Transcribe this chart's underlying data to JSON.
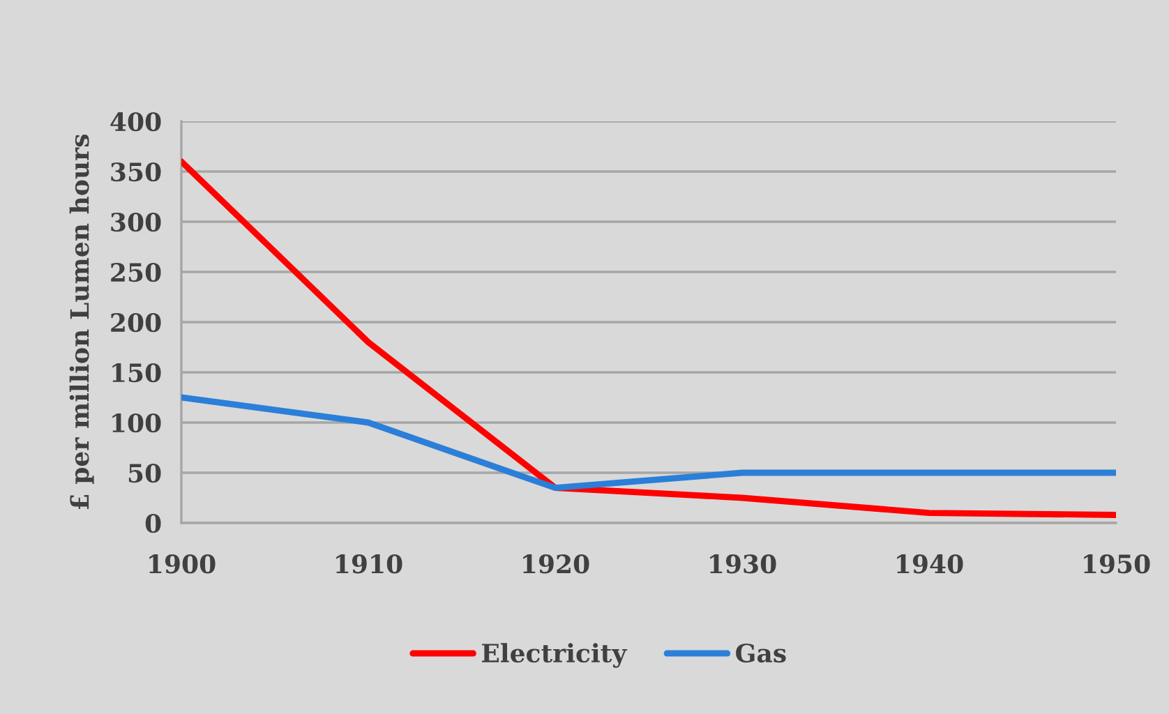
{
  "chart_data": {
    "type": "line",
    "ylabel": "£ per million Lumen hours",
    "categories": [
      "1900",
      "1910",
      "1920",
      "1930",
      "1940",
      "1950"
    ],
    "series": [
      {
        "name": "Electricity",
        "color": "#ff0000",
        "values": [
          360,
          180,
          35,
          25,
          10,
          8
        ]
      },
      {
        "name": "Gas",
        "color": "#2b7fd8",
        "values": [
          125,
          100,
          35,
          50,
          50,
          50
        ]
      }
    ],
    "ylim": [
      0,
      400
    ],
    "yticks": [
      0,
      50,
      100,
      150,
      200,
      250,
      300,
      350,
      400
    ],
    "grid": "y",
    "legend": "bottom",
    "line_style": "solid",
    "marker": "none"
  }
}
